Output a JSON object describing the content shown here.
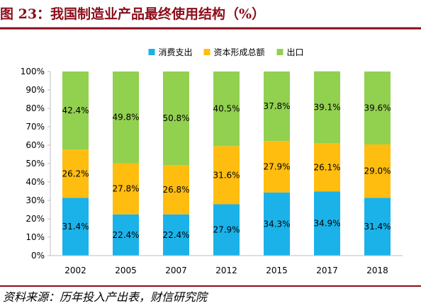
{
  "figure": {
    "title": "图 23：我国制造业产品最终使用结构（%）",
    "source": "资料来源：历年投入产出表，财信研究院"
  },
  "chart_data": {
    "type": "bar",
    "stacked": true,
    "categories": [
      "2002",
      "2005",
      "2007",
      "2012",
      "2015",
      "2017",
      "2018"
    ],
    "series": [
      {
        "name": "消费支出",
        "color": "#1ab2e9",
        "values": [
          31.4,
          22.4,
          22.4,
          27.9,
          34.3,
          34.9,
          31.4
        ],
        "labels": [
          "31.4%",
          "22.4%",
          "22.4%",
          "27.9%",
          "34.3%",
          "34.9%",
          "31.4%"
        ]
      },
      {
        "name": "资本形成总额",
        "color": "#ffbd0f",
        "values": [
          26.2,
          27.8,
          26.8,
          31.6,
          27.9,
          26.1,
          29.0
        ],
        "labels": [
          "26.2%",
          "27.8%",
          "26.8%",
          "31.6%",
          "27.9%",
          "26.1%",
          "29.0%"
        ]
      },
      {
        "name": "出口",
        "color": "#92d050",
        "values": [
          42.4,
          49.8,
          50.8,
          40.5,
          37.8,
          39.1,
          39.6
        ],
        "labels": [
          "42.4%",
          "49.8%",
          "50.8%",
          "40.5%",
          "37.8%",
          "39.1%",
          "39.6%"
        ]
      }
    ],
    "yticks": [
      "0%",
      "10%",
      "20%",
      "30%",
      "40%",
      "50%",
      "60%",
      "70%",
      "80%",
      "90%",
      "100%"
    ],
    "ylim": [
      0,
      100
    ],
    "grid": false,
    "legend": "top-center"
  }
}
